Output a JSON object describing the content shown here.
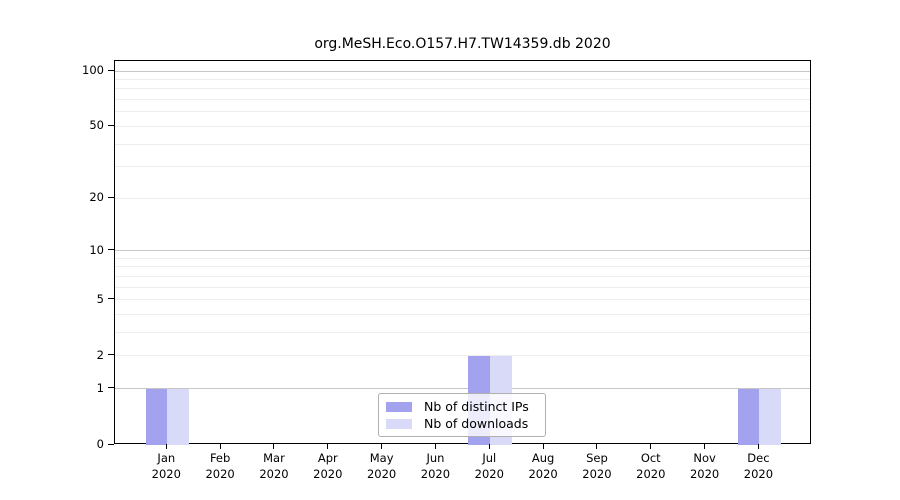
{
  "chart_data": {
    "type": "bar",
    "title": "org.MeSH.Eco.O157.H7.TW14359.db 2020",
    "x_months": [
      "Jan",
      "Feb",
      "Mar",
      "Apr",
      "May",
      "Jun",
      "Jul",
      "Aug",
      "Sep",
      "Oct",
      "Nov",
      "Dec"
    ],
    "x_year": "2020",
    "series": [
      {
        "name": "Nb of distinct IPs",
        "color": "#a2a2ee",
        "values": [
          1,
          0,
          0,
          0,
          0,
          0,
          2,
          0,
          0,
          0,
          0,
          1
        ]
      },
      {
        "name": "Nb of downloads",
        "color": "#d9d9f8",
        "values": [
          1,
          0,
          0,
          0,
          0,
          0,
          2,
          0,
          0,
          0,
          0,
          1
        ]
      }
    ],
    "yscale": "log1p",
    "ylim": [
      0,
      113.3
    ],
    "ytick_values": [
      0,
      1,
      2,
      5,
      10,
      20,
      50,
      100
    ],
    "ytick_labels": [
      "0",
      "1",
      "2",
      "5",
      "10",
      "20",
      "50",
      "100"
    ],
    "grid_major": [
      1,
      10,
      100
    ],
    "grid_minor": [
      2,
      3,
      4,
      5,
      6,
      7,
      8,
      9,
      20,
      30,
      40,
      50,
      60,
      70,
      80,
      90
    ],
    "legend_position": "lower center",
    "grid": true
  }
}
